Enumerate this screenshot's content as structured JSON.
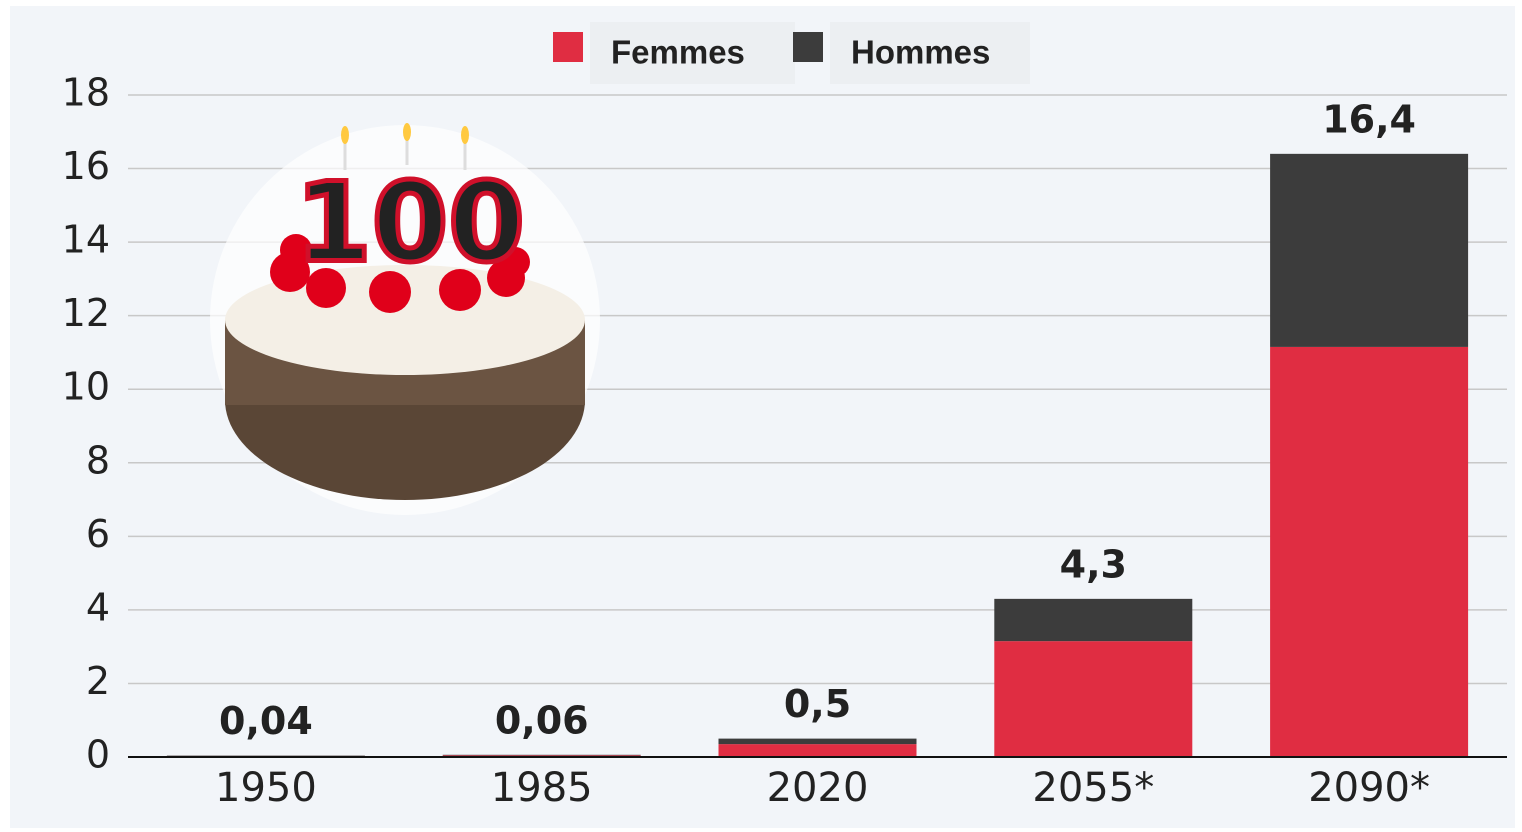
{
  "chart_data": {
    "type": "stacked_bar",
    "categories": [
      "1950",
      "1985",
      "2020",
      "2055*",
      "2090*"
    ],
    "series": [
      {
        "name": "Femmes",
        "color": "#e02d42",
        "values": [
          0.03,
          0.045,
          0.35,
          3.15,
          11.15
        ]
      },
      {
        "name": "Hommes",
        "color": "#3c3c3c",
        "values": [
          0.01,
          0.015,
          0.15,
          1.15,
          5.25
        ]
      }
    ],
    "totals": [
      0.04,
      0.06,
      0.5,
      4.3,
      16.4
    ],
    "value_labels": [
      "0,04",
      "0,06",
      "0,5",
      "4,3",
      "16,4"
    ],
    "ylim": [
      0,
      18
    ],
    "yticks": [
      0,
      2,
      4,
      6,
      8,
      10,
      12,
      14,
      16,
      18
    ],
    "grid": true,
    "legend": "top"
  }
}
